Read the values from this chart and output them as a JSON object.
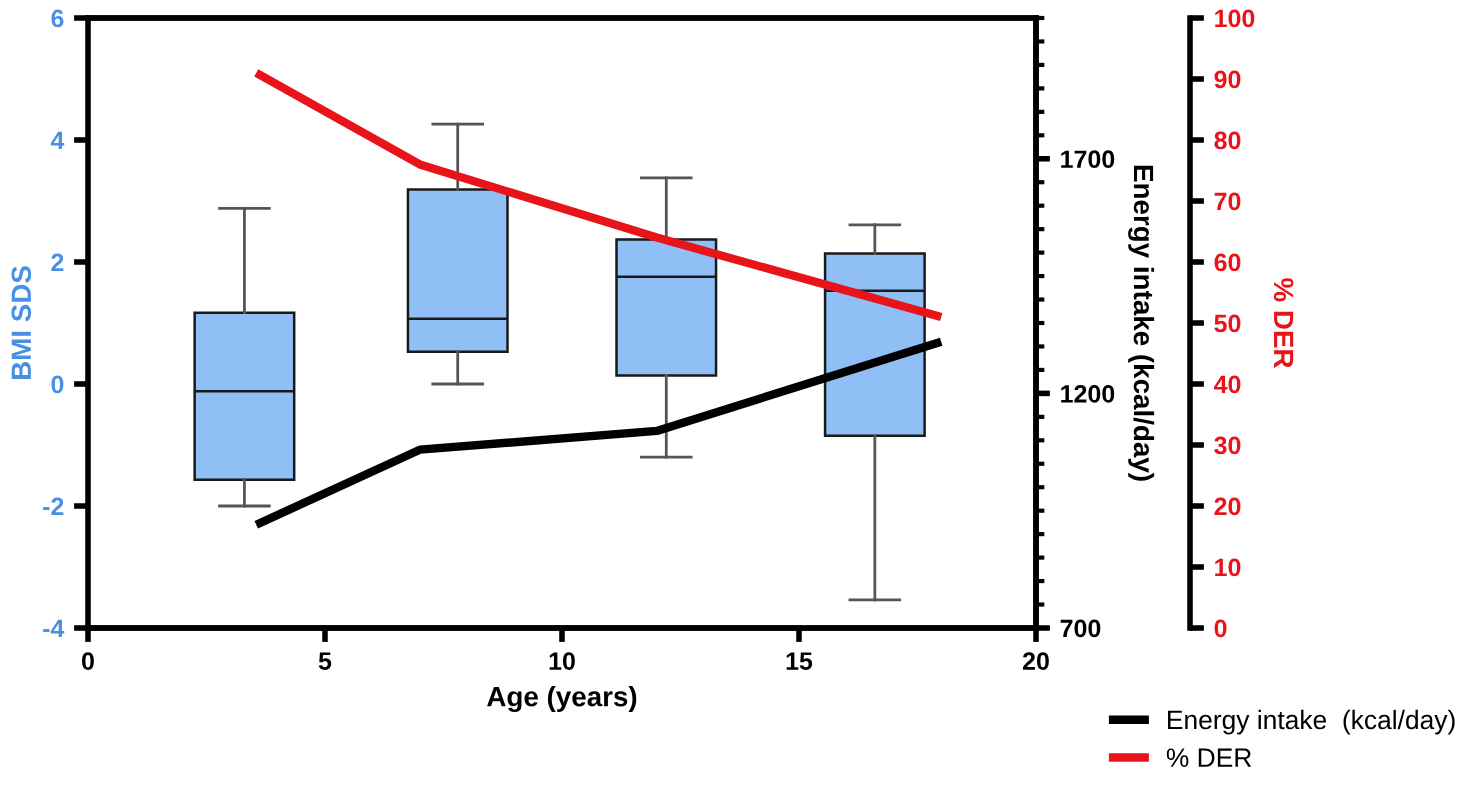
{
  "chart_data": {
    "type": "box",
    "xlabel": "Age (years)",
    "ylabel": "BMI SDS",
    "y2label": "Energy intake (kcal/day)",
    "y3label": "% DER",
    "xlim": [
      0,
      20
    ],
    "xticks": [
      0,
      5,
      10,
      15,
      20
    ],
    "ylim": [
      -4,
      6
    ],
    "yticks": [
      -4,
      -2,
      0,
      2,
      4,
      6
    ],
    "y2lim": [
      700,
      2000
    ],
    "y2ticks": [
      700,
      1200,
      1700
    ],
    "y3lim": [
      0,
      100
    ],
    "y3ticks": [
      0,
      10,
      20,
      30,
      40,
      50,
      60,
      70,
      80,
      90,
      100
    ],
    "grid": false,
    "legend": "bottom right",
    "series": [
      {
        "color": "#90bff5",
        "x": [
          3.3,
          7.8,
          12.2,
          16.6
        ],
        "boxes": [
          {
            "low": -2.0,
            "q1": -1.57,
            "median": -0.12,
            "q3": 1.17,
            "high": 2.88
          },
          {
            "low": 0.0,
            "q1": 0.53,
            "median": 1.07,
            "q3": 3.19,
            "high": 4.26
          },
          {
            "low": -1.2,
            "q1": 0.14,
            "median": 1.76,
            "q3": 2.37,
            "high": 3.38
          },
          {
            "low": -3.54,
            "q1": -0.85,
            "median": 1.53,
            "q3": 2.14,
            "high": 2.61
          }
        ]
      },
      {
        "type": "line",
        "name": "Energy intake  (kcal/day)",
        "color": "#000000",
        "axis": "y2",
        "x": [
          3.55,
          7.0,
          12.0,
          18.0
        ],
        "values": [
          920,
          1080,
          1120,
          1310
        ]
      },
      {
        "type": "line",
        "name": "% DER",
        "color": "#e8141a",
        "axis": "y3",
        "x": [
          3.55,
          7.0,
          12.0,
          18.0
        ],
        "values": [
          91,
          76,
          64,
          51
        ]
      }
    ]
  }
}
